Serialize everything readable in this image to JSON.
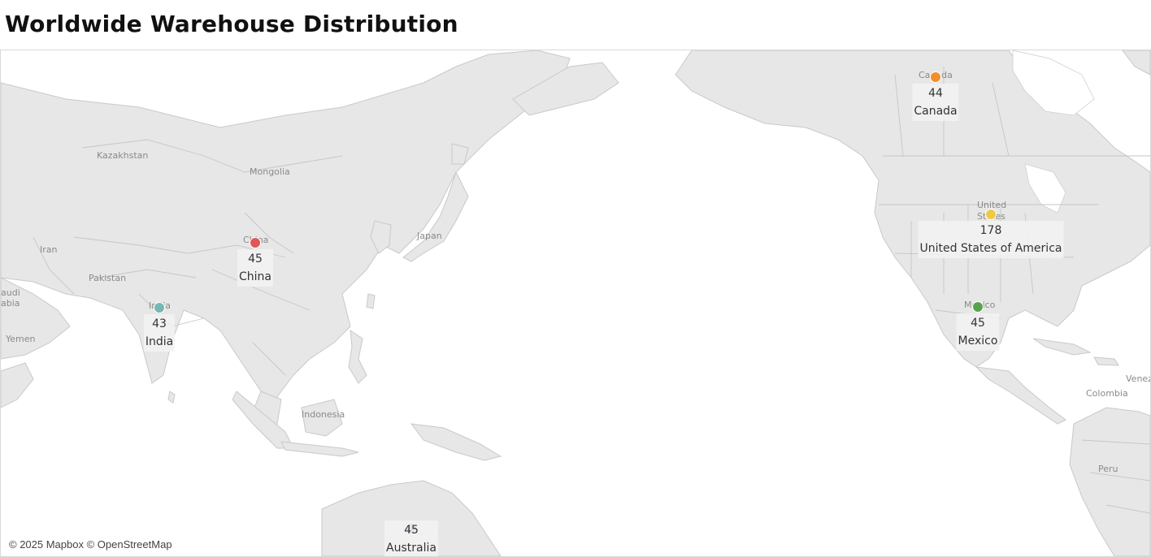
{
  "title": "Worldwide Warehouse Distribution",
  "attribution": "© 2025 Mapbox © OpenStreetMap",
  "basemap_labels": [
    {
      "key": "kazakhstan",
      "text": "Kazakhstan"
    },
    {
      "key": "mongolia",
      "text": "Mongolia"
    },
    {
      "key": "iran",
      "text": "Iran"
    },
    {
      "key": "pakistan",
      "text": "Pakistan"
    },
    {
      "key": "saudi1",
      "text": "audi"
    },
    {
      "key": "saudi2",
      "text": "abia"
    },
    {
      "key": "yemen",
      "text": "Yemen"
    },
    {
      "key": "china",
      "text": "China"
    },
    {
      "key": "india",
      "text": "India"
    },
    {
      "key": "japan",
      "text": "Japan"
    },
    {
      "key": "indonesia",
      "text": "Indonesia"
    },
    {
      "key": "canada",
      "text": "Canada"
    },
    {
      "key": "us1",
      "text": "United"
    },
    {
      "key": "us2",
      "text": "States"
    },
    {
      "key": "mexico",
      "text": "Mexico"
    },
    {
      "key": "colombia",
      "text": "Colombia"
    },
    {
      "key": "peru",
      "text": "Peru"
    },
    {
      "key": "venezuela",
      "text": "Venez"
    }
  ],
  "markers": [
    {
      "country": "China",
      "value": "45",
      "color": "#e15759"
    },
    {
      "country": "India",
      "value": "43",
      "color": "#76b7b2"
    },
    {
      "country": "Canada",
      "value": "44",
      "color": "#f28e2b"
    },
    {
      "country": "United States of America",
      "value": "178",
      "color": "#edc948"
    },
    {
      "country": "Mexico",
      "value": "45",
      "color": "#59a14f"
    },
    {
      "country": "Australia",
      "value": "45",
      "color": "#4e79a7"
    }
  ]
}
